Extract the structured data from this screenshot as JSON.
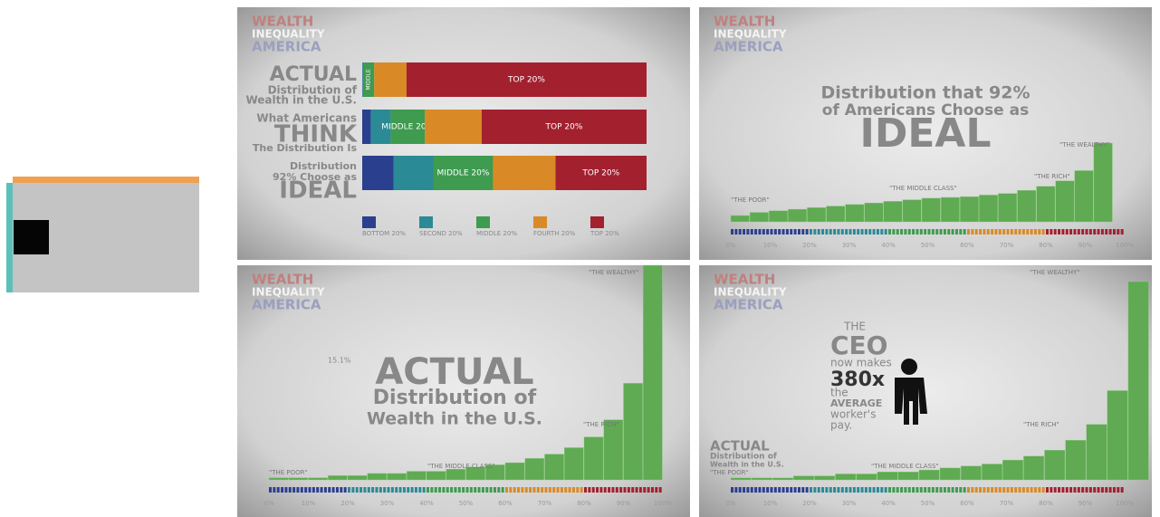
{
  "brand": [
    "WEALTH",
    "INEQUALITY",
    "AMERICA"
  ],
  "x_ticks": [
    "0%",
    "10%",
    "20%",
    "30%",
    "40%",
    "50%",
    "60%",
    "70%",
    "80%",
    "90%",
    "100%"
  ],
  "bar_panel": {
    "colors": [
      "#2b3f8f",
      "#2a8a96",
      "#3e9b4f",
      "#d98a26",
      "#a3202f"
    ],
    "legend": [
      "BOTTOM 20%",
      "SECOND 20%",
      "MIDDLE 20%",
      "FOURTH 20%",
      "TOP 20%"
    ],
    "rows": [
      {
        "label": [
          "ACTUAL",
          "Distribution of",
          "Wealth in the U.S."
        ],
        "values": [
          0.1,
          0.2,
          3.9,
          11.3,
          84
        ],
        "segment_labels": [
          null,
          null,
          "MIDDLE",
          null,
          "TOP 20%"
        ]
      },
      {
        "label": [
          "What Americans",
          "THINK",
          "The Distribution Is"
        ],
        "values": [
          3,
          7,
          12,
          20,
          58
        ],
        "segment_labels": [
          null,
          null,
          "MIDDLE 20%",
          null,
          "TOP 20%"
        ]
      },
      {
        "label": [
          "Distribution",
          "92% Choose as",
          "IDEAL"
        ],
        "values": [
          11,
          14,
          21,
          22,
          32
        ],
        "segment_labels": [
          null,
          null,
          "MIDDLE 20%",
          null,
          "TOP 20%"
        ]
      }
    ]
  },
  "ideal_panel": {
    "title": [
      "Distribution that 92%",
      "of Americans Choose as",
      "IDEAL"
    ],
    "groups": [
      "\"THE WEALTHY\"",
      "\"THE RICH\"",
      "\"THE MIDDLE CLASS\"",
      "\"THE POOR\""
    ],
    "values": [
      8,
      12,
      14,
      16,
      18,
      20,
      22,
      24,
      26,
      28,
      30,
      31,
      32,
      34,
      36,
      40,
      45,
      52,
      65,
      100
    ]
  },
  "actual_panel": {
    "title": [
      "ACTUAL",
      "Distribution of",
      "Wealth in the U.S."
    ],
    "note": "15.1%",
    "groups": [
      "\"THE WEALTHY\"",
      "\"THE RICH\"",
      "\"THE MIDDLE CLASS\"",
      "\"THE POOR\""
    ],
    "values": [
      1,
      1,
      1,
      2,
      2,
      3,
      3,
      4,
      4,
      5,
      6,
      7,
      8,
      10,
      12,
      15,
      20,
      28,
      45,
      100
    ]
  },
  "ceo_panel": {
    "text": [
      "THE",
      "CEO",
      "now makes",
      "380x",
      "the",
      "AVERAGE",
      "worker's",
      "pay."
    ],
    "caption": [
      "ACTUAL",
      "Distribution of",
      "Wealth in the U.S."
    ],
    "groups": [
      "\"THE WEALTHY\"",
      "\"THE RICH\"",
      "\"THE MIDDLE CLASS\"",
      "\"THE POOR\""
    ],
    "values": [
      1,
      1,
      1,
      2,
      2,
      3,
      3,
      4,
      4,
      5,
      6,
      7,
      8,
      10,
      12,
      15,
      20,
      28,
      45,
      100
    ]
  }
}
